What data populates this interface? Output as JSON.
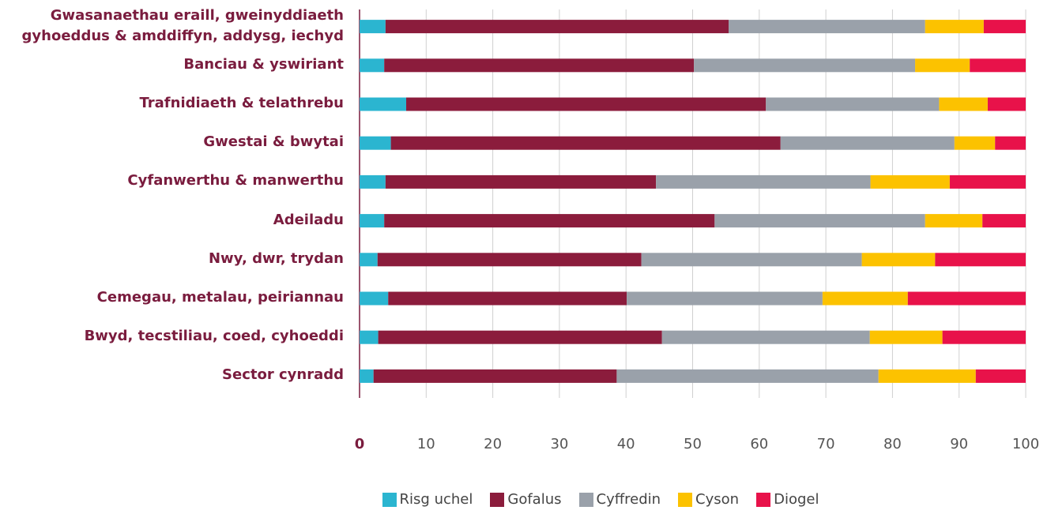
{
  "chart_data": {
    "type": "stacked-bar-horizontal",
    "categories": [
      "Gwasanaethau eraill, gweinyddiaeth\ngyhoeddus & amddiffyn, addysg, iechyd",
      "Banciau & yswiriant",
      "Trafnidiaeth & telathrebu",
      "Gwestai & bwytai",
      "Cyfanwerthu & manwerthu",
      "Adeiladu",
      "Nwy, dwr, trydan",
      "Cemegau, metalau, peiriannau",
      "Bwyd, tecstiliau, coed, cyhoeddi",
      "Sector cynradd"
    ],
    "series": [
      {
        "name": "Risg uchel",
        "color": "#2bb5d0",
        "values": [
          3.9,
          3.7,
          7.0,
          4.7,
          3.9,
          3.7,
          2.7,
          4.3,
          2.8,
          2.1
        ]
      },
      {
        "name": "Gofalus",
        "color": "#8b1c3c",
        "values": [
          51.5,
          46.5,
          54.0,
          58.5,
          40.6,
          49.6,
          39.6,
          35.8,
          42.6,
          36.5
        ]
      },
      {
        "name": "Cyffredin",
        "color": "#9aa1aa",
        "values": [
          29.5,
          33.2,
          26.0,
          26.1,
          32.2,
          31.6,
          33.1,
          29.4,
          31.2,
          39.3
        ]
      },
      {
        "name": "Cyson",
        "color": "#fcc200",
        "values": [
          8.8,
          8.2,
          7.3,
          6.1,
          11.9,
          8.6,
          11.0,
          12.8,
          10.9,
          14.6
        ]
      },
      {
        "name": "Diogel",
        "color": "#e8124a",
        "values": [
          6.3,
          8.4,
          5.7,
          4.6,
          11.4,
          6.5,
          13.6,
          17.7,
          12.5,
          7.5
        ]
      }
    ],
    "xlim": [
      0,
      100
    ],
    "xticks": [
      0,
      10,
      20,
      30,
      40,
      50,
      60,
      70,
      80,
      90,
      100
    ],
    "grid": true,
    "legend": "bottom"
  }
}
